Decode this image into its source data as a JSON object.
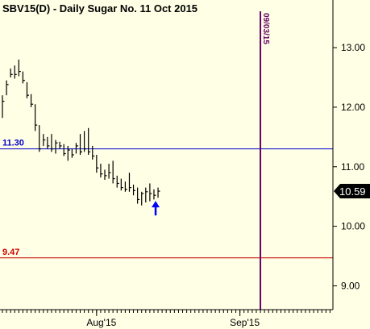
{
  "chart_data": {
    "type": "ohlc",
    "title": "SBV15(D) - Daily  Sugar No. 11 Oct 2015",
    "ylim": [
      8.6,
      13.8
    ],
    "y_ticks": [
      "9.00",
      "10.00",
      "11.00",
      "12.00",
      "13.00"
    ],
    "x_ticks": [
      {
        "label": "Aug'15",
        "bar_index": 23
      },
      {
        "label": "Sep'15",
        "bar_index": 58
      }
    ],
    "horizontal_lines": [
      {
        "label": "11.30",
        "value": 11.3,
        "color": "#0000cc"
      },
      {
        "label": "9.47",
        "value": 9.47,
        "color": "#cc0000"
      }
    ],
    "vertical_line": {
      "label": "09/03/15",
      "bar_index": 63,
      "color": "#660066"
    },
    "last_price": {
      "label": "10.59",
      "value": 10.59
    },
    "arrow": {
      "bar_index": 38,
      "direction": "up",
      "color": "#0000ff"
    },
    "bars": [
      {
        "h": 12.2,
        "l": 11.82,
        "c": 12.1
      },
      {
        "h": 12.45,
        "l": 12.2,
        "c": 12.38
      },
      {
        "h": 12.65,
        "l": 12.5,
        "c": 12.55
      },
      {
        "h": 12.7,
        "l": 12.48,
        "c": 12.55
      },
      {
        "h": 12.8,
        "l": 12.52,
        "c": 12.6
      },
      {
        "h": 12.6,
        "l": 12.4,
        "c": 12.45
      },
      {
        "h": 12.42,
        "l": 12.15,
        "c": 12.2
      },
      {
        "h": 12.22,
        "l": 12.0,
        "c": 12.05
      },
      {
        "h": 12.05,
        "l": 11.6,
        "c": 11.7
      },
      {
        "h": 11.7,
        "l": 11.25,
        "c": 11.3
      },
      {
        "h": 11.55,
        "l": 11.35,
        "c": 11.45
      },
      {
        "h": 11.5,
        "l": 11.3,
        "c": 11.35
      },
      {
        "h": 11.55,
        "l": 11.25,
        "c": 11.3
      },
      {
        "h": 11.45,
        "l": 11.22,
        "c": 11.4
      },
      {
        "h": 11.42,
        "l": 11.3,
        "c": 11.35
      },
      {
        "h": 11.38,
        "l": 11.18,
        "c": 11.22
      },
      {
        "h": 11.35,
        "l": 11.1,
        "c": 11.28
      },
      {
        "h": 11.3,
        "l": 11.15,
        "c": 11.2
      },
      {
        "h": 11.4,
        "l": 11.22,
        "c": 11.35
      },
      {
        "h": 11.55,
        "l": 11.2,
        "c": 11.25
      },
      {
        "h": 11.6,
        "l": 11.25,
        "c": 11.3
      },
      {
        "h": 11.65,
        "l": 11.2,
        "c": 11.25
      },
      {
        "h": 11.35,
        "l": 11.12,
        "c": 11.18
      },
      {
        "h": 11.2,
        "l": 10.9,
        "c": 10.98
      },
      {
        "h": 11.05,
        "l": 10.82,
        "c": 10.88
      },
      {
        "h": 10.95,
        "l": 10.78,
        "c": 10.85
      },
      {
        "h": 11.05,
        "l": 10.8,
        "c": 10.9
      },
      {
        "h": 11.1,
        "l": 10.72,
        "c": 10.8
      },
      {
        "h": 10.85,
        "l": 10.65,
        "c": 10.72
      },
      {
        "h": 10.8,
        "l": 10.6,
        "c": 10.65
      },
      {
        "h": 10.75,
        "l": 10.58,
        "c": 10.62
      },
      {
        "h": 10.9,
        "l": 10.58,
        "c": 10.65
      },
      {
        "h": 10.7,
        "l": 10.52,
        "c": 10.6
      },
      {
        "h": 10.65,
        "l": 10.38,
        "c": 10.45
      },
      {
        "h": 10.58,
        "l": 10.35,
        "c": 10.55
      },
      {
        "h": 10.65,
        "l": 10.4,
        "c": 10.58
      },
      {
        "h": 10.72,
        "l": 10.42,
        "c": 10.55
      },
      {
        "h": 10.62,
        "l": 10.45,
        "c": 10.52
      },
      {
        "h": 10.65,
        "l": 10.48,
        "c": 10.59
      }
    ]
  }
}
